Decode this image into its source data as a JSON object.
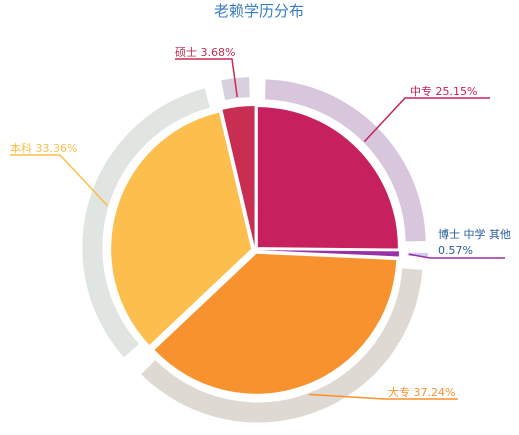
{
  "chart_data": {
    "type": "pie",
    "title": "老赖学历分布",
    "slices": [
      {
        "label": "中专",
        "value": 25.15,
        "display": "中专  25.15%",
        "color": "#c7205e",
        "ring_color": "#d64f87"
      },
      {
        "label": "博士 中学 其他",
        "value": 0.57,
        "display_line1": "博士 中学 其他",
        "display_line2": "0.57%",
        "color": "#9b2fa6",
        "ring_color": "#b86bc2"
      },
      {
        "label": "大专",
        "value": 37.24,
        "display": "大专 37.24%",
        "color": "#f7922f",
        "ring_color": "#f5a35a"
      },
      {
        "label": "本科",
        "value": 33.36,
        "display": "本科 33.36%",
        "color": "#fcbe4c",
        "ring_color": "#f8d89a"
      },
      {
        "label": "硕士",
        "value": 3.68,
        "display": "硕士  3.68%",
        "color": "#c72e52",
        "ring_color": "#dd7d8f"
      }
    ],
    "legend": "none"
  }
}
